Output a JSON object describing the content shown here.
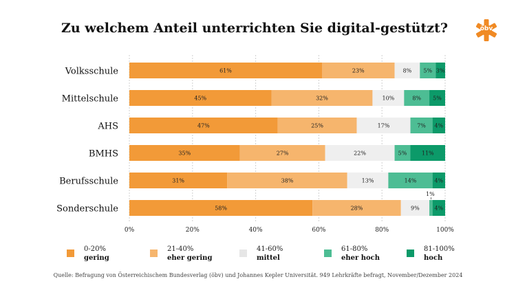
{
  "title": "Zu welchem Anteil unterrichten Sie digital-gestützt?",
  "logo": {
    "text": "öbv",
    "color": "#f08a24"
  },
  "chart_data": {
    "type": "bar",
    "orientation": "horizontal",
    "stacked": true,
    "title": "Zu welchem Anteil unterrichten Sie digital-gestützt?",
    "categories": [
      "Volksschule",
      "Mittelschule",
      "AHS",
      "BMHS",
      "Berufsschule",
      "Sonderschule"
    ],
    "series": [
      {
        "name": "gering",
        "range": "0-20%",
        "color": "#f29a38",
        "values": [
          61,
          45,
          47,
          35,
          31,
          58
        ]
      },
      {
        "name": "eher gering",
        "range": "21-40%",
        "color": "#f6b56d",
        "values": [
          23,
          32,
          25,
          27,
          38,
          28
        ]
      },
      {
        "name": "mittel",
        "range": "41-60%",
        "color": "#efefef",
        "values": [
          8,
          10,
          17,
          22,
          13,
          9
        ]
      },
      {
        "name": "eher hoch",
        "range": "61-80%",
        "color": "#4dbd94",
        "values": [
          5,
          8,
          7,
          5,
          14,
          1
        ]
      },
      {
        "name": "hoch",
        "range": "81-100%",
        "color": "#0c9a69",
        "values": [
          3,
          5,
          4,
          11,
          4,
          4
        ]
      }
    ],
    "xlim": [
      0,
      100
    ],
    "x_ticks": [
      "0%",
      "20%",
      "40%",
      "60%",
      "80%",
      "100%"
    ],
    "grid": true,
    "legend_position": "bottom"
  },
  "source": "Quelle: Befragung von Österreichischem Bundesverlag (öbv) und Johannes Kepler Universität. 949 Lehrkräfte befragt, November/Dezember 2024"
}
